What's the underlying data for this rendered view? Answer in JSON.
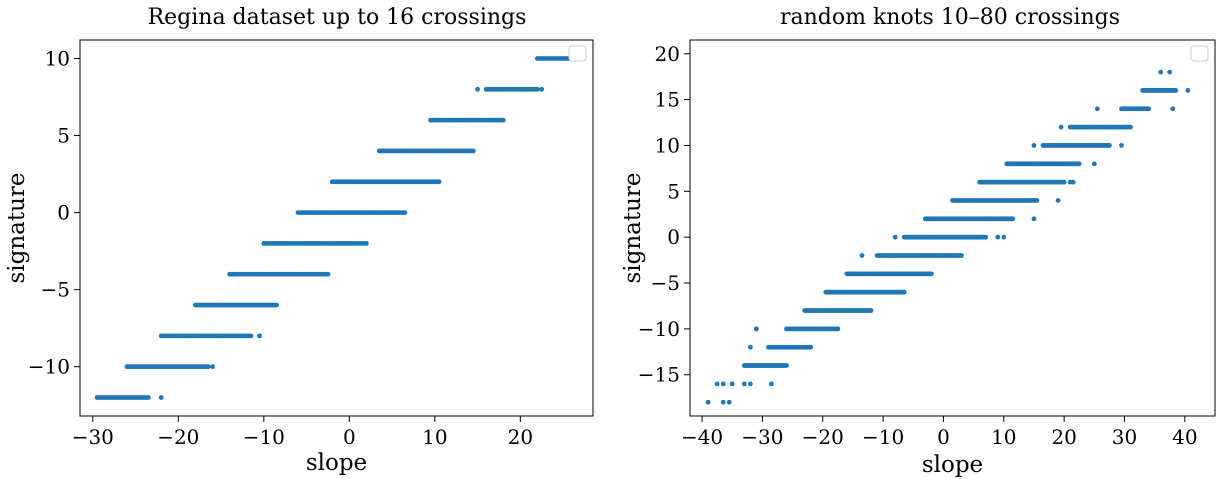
{
  "chart_data": [
    {
      "type": "scatter",
      "title": "Regina dataset up to 16 crossings",
      "xlabel": "slope",
      "ylabel": "signature",
      "xlim": [
        -31.5,
        28.5
      ],
      "ylim": [
        -13.2,
        11.2
      ],
      "xticks": [
        -30,
        -20,
        -10,
        0,
        10,
        20
      ],
      "yticks": [
        -10,
        -5,
        0,
        5,
        10
      ],
      "xtick_labels": [
        "−30",
        "−20",
        "−10",
        "0",
        "10",
        "20"
      ],
      "ytick_labels": [
        "−10",
        "−5",
        "0",
        "5",
        "10"
      ],
      "color": "#1f77b4",
      "grid": false,
      "legend": "top-right, empty",
      "series": [
        {
          "segments": [
            {
              "y": -12,
              "x_from": -29.5,
              "x_to": -23.5
            },
            {
              "y": -10,
              "x_from": -26,
              "x_to": -16.5
            },
            {
              "y": -8,
              "x_from": -22,
              "x_to": -11.5
            },
            {
              "y": -6,
              "x_from": -18,
              "x_to": -8.5
            },
            {
              "y": -4,
              "x_from": -14,
              "x_to": -2.5
            },
            {
              "y": -2,
              "x_from": -10,
              "x_to": 2
            },
            {
              "y": 0,
              "x_from": -6,
              "x_to": 6.5
            },
            {
              "y": 2,
              "x_from": -2,
              "x_to": 10.5
            },
            {
              "y": 4,
              "x_from": 3.5,
              "x_to": 14.5
            },
            {
              "y": 6,
              "x_from": 9.5,
              "x_to": 18
            },
            {
              "y": 8,
              "x_from": 16,
              "x_to": 22
            },
            {
              "y": 10,
              "x_from": 22,
              "x_to": 26.5
            }
          ],
          "outliers": [
            {
              "x": -22,
              "y": -12
            },
            {
              "x": -16,
              "y": -10
            },
            {
              "x": -10.5,
              "y": -8
            },
            {
              "x": 15,
              "y": 8
            },
            {
              "x": 22.5,
              "y": 8
            }
          ]
        }
      ]
    },
    {
      "type": "scatter",
      "title": "random knots 10–80 crossings",
      "xlabel": "slope",
      "ylabel": "signature",
      "xlim": [
        -42,
        45
      ],
      "ylim": [
        -19.5,
        21.5
      ],
      "xticks": [
        -40,
        -30,
        -20,
        -10,
        0,
        10,
        20,
        30,
        40
      ],
      "yticks": [
        -15,
        -10,
        -5,
        0,
        5,
        10,
        15,
        20
      ],
      "xtick_labels": [
        "−40",
        "−30",
        "−20",
        "−10",
        "0",
        "10",
        "20",
        "30",
        "40"
      ],
      "ytick_labels": [
        "−15",
        "−10",
        "−5",
        "0",
        "5",
        "10",
        "15",
        "20"
      ],
      "color": "#1f77b4",
      "grid": false,
      "legend": "top-right, empty",
      "series": [
        {
          "segments": [
            {
              "y": -14,
              "x_from": -33,
              "x_to": -26
            },
            {
              "y": -12,
              "x_from": -29,
              "x_to": -22
            },
            {
              "y": -10,
              "x_from": -26,
              "x_to": -17.5
            },
            {
              "y": -8,
              "x_from": -23,
              "x_to": -12
            },
            {
              "y": -6,
              "x_from": -19.5,
              "x_to": -6.5
            },
            {
              "y": -4,
              "x_from": -16,
              "x_to": -2
            },
            {
              "y": -2,
              "x_from": -11,
              "x_to": 3
            },
            {
              "y": 0,
              "x_from": -6.5,
              "x_to": 7
            },
            {
              "y": 2,
              "x_from": -3,
              "x_to": 11.5
            },
            {
              "y": 4,
              "x_from": 1.5,
              "x_to": 15.5
            },
            {
              "y": 6,
              "x_from": 6,
              "x_to": 20
            },
            {
              "y": 8,
              "x_from": 10.5,
              "x_to": 22.5
            },
            {
              "y": 10,
              "x_from": 16.5,
              "x_to": 27.5
            },
            {
              "y": 12,
              "x_from": 21,
              "x_to": 31
            },
            {
              "y": 14,
              "x_from": 29.5,
              "x_to": 34
            },
            {
              "y": 16,
              "x_from": 33,
              "x_to": 38.5
            }
          ],
          "outliers": [
            {
              "x": -39,
              "y": -18
            },
            {
              "x": -36.5,
              "y": -18
            },
            {
              "x": -35.5,
              "y": -18
            },
            {
              "x": -37.5,
              "y": -16
            },
            {
              "x": -36.5,
              "y": -16
            },
            {
              "x": -35,
              "y": -16
            },
            {
              "x": -33,
              "y": -16
            },
            {
              "x": -32,
              "y": -16
            },
            {
              "x": -28.5,
              "y": -16
            },
            {
              "x": -32,
              "y": -12
            },
            {
              "x": -31,
              "y": -10
            },
            {
              "x": -13.5,
              "y": -2
            },
            {
              "x": -9,
              "y": -2
            },
            {
              "x": -8,
              "y": 0
            },
            {
              "x": 9,
              "y": 0
            },
            {
              "x": 10,
              "y": 0
            },
            {
              "x": 15,
              "y": 2
            },
            {
              "x": 19,
              "y": 4
            },
            {
              "x": 21,
              "y": 6
            },
            {
              "x": 21.5,
              "y": 6
            },
            {
              "x": 25,
              "y": 8
            },
            {
              "x": 15,
              "y": 10
            },
            {
              "x": 29.5,
              "y": 10
            },
            {
              "x": 19.5,
              "y": 12
            },
            {
              "x": 25.5,
              "y": 14
            },
            {
              "x": 30,
              "y": 14
            },
            {
              "x": 38,
              "y": 14
            },
            {
              "x": 40.5,
              "y": 16
            },
            {
              "x": 36,
              "y": 18
            },
            {
              "x": 37.5,
              "y": 18
            },
            {
              "x": 41.5,
              "y": 20
            },
            {
              "x": 42,
              "y": 20
            }
          ]
        }
      ]
    }
  ]
}
